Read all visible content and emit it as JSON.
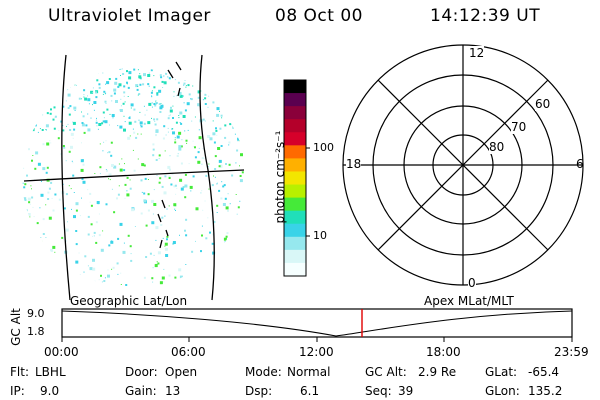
{
  "header": {
    "title": "Ultraviolet Imager",
    "date": "08 Oct 00",
    "time": "14:12:39 UT"
  },
  "colorbar": {
    "label": "photon cm⁻²s⁻¹",
    "ticks": [
      "100",
      "10"
    ],
    "colors": [
      "#000000",
      "#5a004f",
      "#8a003a",
      "#b4002a",
      "#d6002a",
      "#ff6a00",
      "#ffb000",
      "#f3e600",
      "#b8f000",
      "#45ea39",
      "#20dfb9",
      "#39d3e8",
      "#96e8ee",
      "#d9f7f7",
      "#f6ffff"
    ]
  },
  "polar": {
    "mlt_labels": {
      "top": "12",
      "bottom": "0",
      "left": "18",
      "right": "6"
    },
    "lat_labels": [
      "60",
      "70",
      "80"
    ]
  },
  "timeline": {
    "left_label": "Geographic Lat/Lon",
    "right_label": "Apex MLat/MLT",
    "y_title": "GC Alt",
    "y_ticks": [
      "9.0",
      "1.8"
    ],
    "x_ticks": [
      "00:00",
      "06:00",
      "12:00",
      "18:00",
      "23:59"
    ],
    "marker_color": "#e00000"
  },
  "footer": {
    "row1": [
      {
        "key": "Flt:",
        "val": "LBHL"
      },
      {
        "key": "Door:",
        "val": "Open"
      },
      {
        "key": "Mode:",
        "val": "Normal"
      },
      {
        "key": "GC Alt:",
        "val": "2.9 Re"
      },
      {
        "key": "GLat:",
        "val": "-65.4"
      }
    ],
    "row2": [
      {
        "key": "IP:",
        "val": "9.0"
      },
      {
        "key": "Gain:",
        "val": "13"
      },
      {
        "key": "Dsp:",
        "val": "6.1"
      },
      {
        "key": "Seq:",
        "val": "39"
      },
      {
        "key": "GLon:",
        "val": "135.2"
      }
    ]
  }
}
